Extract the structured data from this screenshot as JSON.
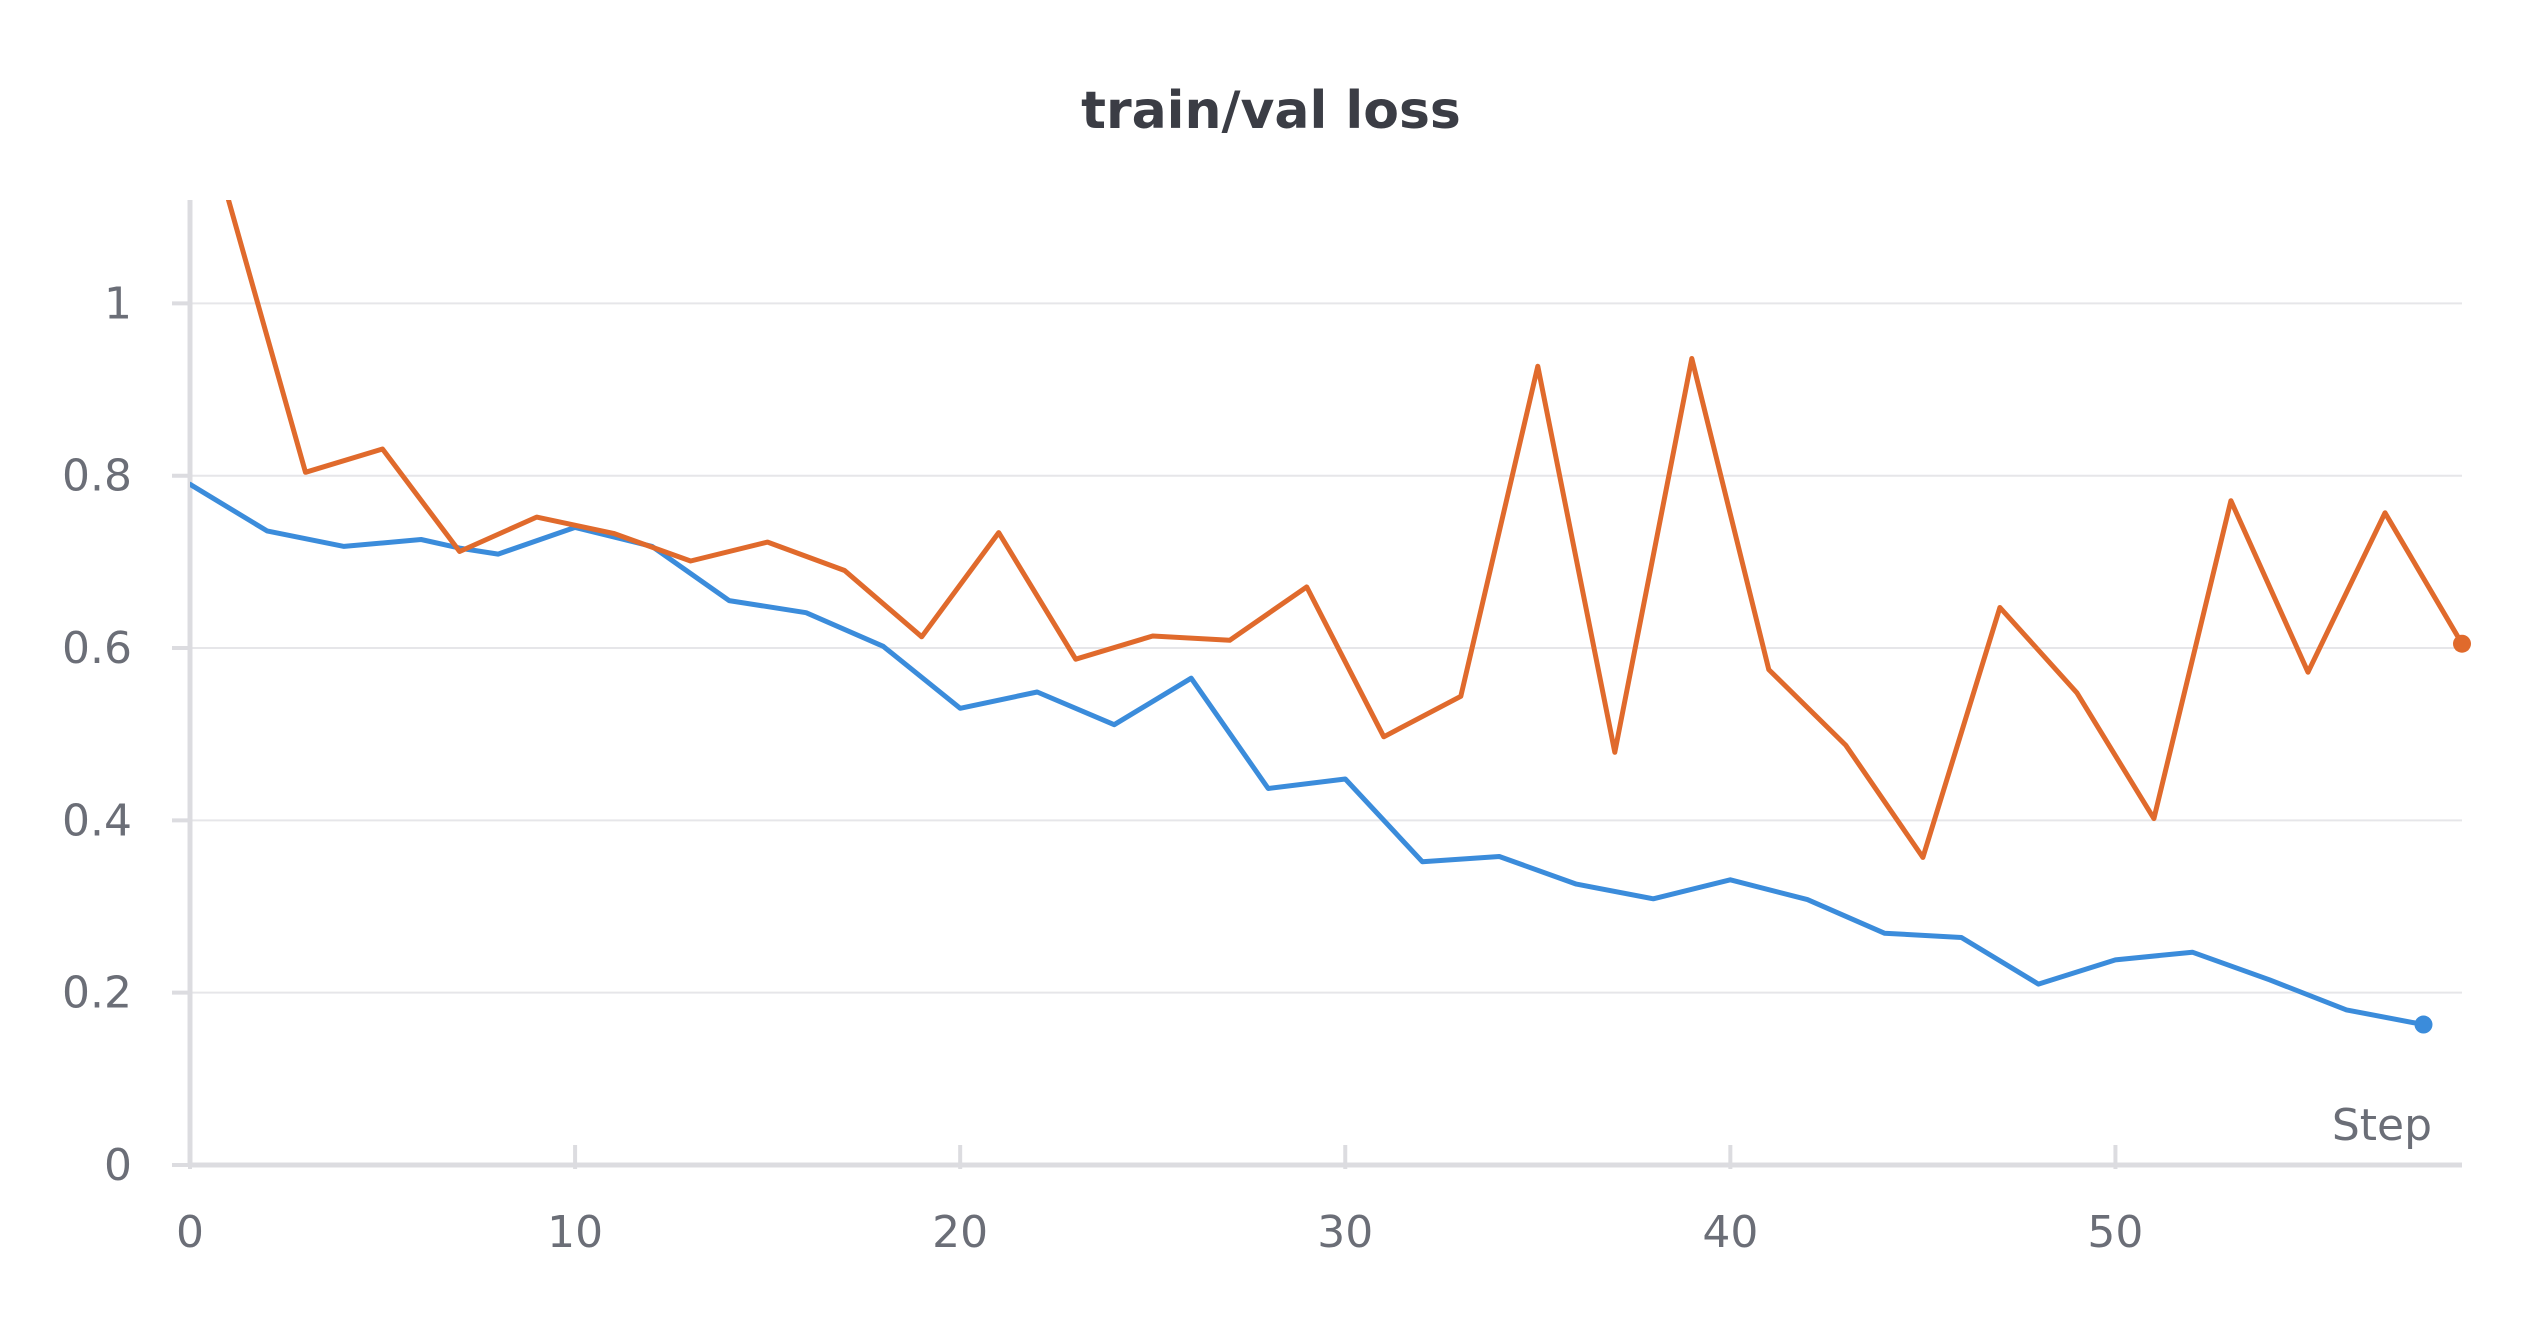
{
  "chart_data": {
    "type": "line",
    "title": "train/val loss",
    "xlabel": "Step",
    "ylabel": "",
    "xlim": [
      0,
      59
    ],
    "ylim": [
      0,
      1.12
    ],
    "xticks": [
      0,
      10,
      20,
      30,
      40,
      50
    ],
    "yticks": [
      0,
      0.2,
      0.4,
      0.6,
      0.8,
      1
    ],
    "grid": true,
    "legend": "none",
    "series": [
      {
        "color": "#3b8cdb",
        "end_marker": true,
        "x": [
          0,
          2,
          4,
          6,
          7,
          8,
          10,
          12,
          14,
          16,
          18,
          20,
          22,
          24,
          26,
          28,
          30,
          32,
          34,
          36,
          38,
          40,
          42,
          44,
          46,
          48,
          50,
          52,
          54,
          56,
          58
        ],
        "y": [
          0.79,
          0.736,
          0.718,
          0.726,
          0.716,
          0.709,
          0.74,
          0.718,
          0.655,
          0.641,
          0.602,
          0.53,
          0.549,
          0.511,
          0.565,
          0.437,
          0.448,
          0.352,
          0.358,
          0.326,
          0.309,
          0.331,
          0.308,
          0.269,
          0.264,
          0.21,
          0.238,
          0.247,
          0.215,
          0.18,
          0.163
        ]
      },
      {
        "color": "#e06a2c",
        "end_marker": true,
        "x": [
          1,
          3,
          5,
          7,
          9,
          11,
          13,
          15,
          17,
          19,
          21,
          23,
          25,
          27,
          29,
          31,
          33,
          35,
          37,
          39,
          41,
          43,
          45,
          47,
          49,
          51,
          53,
          55,
          57,
          59
        ],
        "y": [
          1.12,
          0.804,
          0.831,
          0.712,
          0.752,
          0.733,
          0.701,
          0.723,
          0.69,
          0.613,
          0.734,
          0.587,
          0.614,
          0.609,
          0.671,
          0.497,
          0.544,
          0.927,
          0.479,
          0.936,
          0.575,
          0.487,
          0.357,
          0.647,
          0.548,
          0.402,
          0.771,
          0.572,
          0.757,
          0.605
        ]
      }
    ]
  }
}
